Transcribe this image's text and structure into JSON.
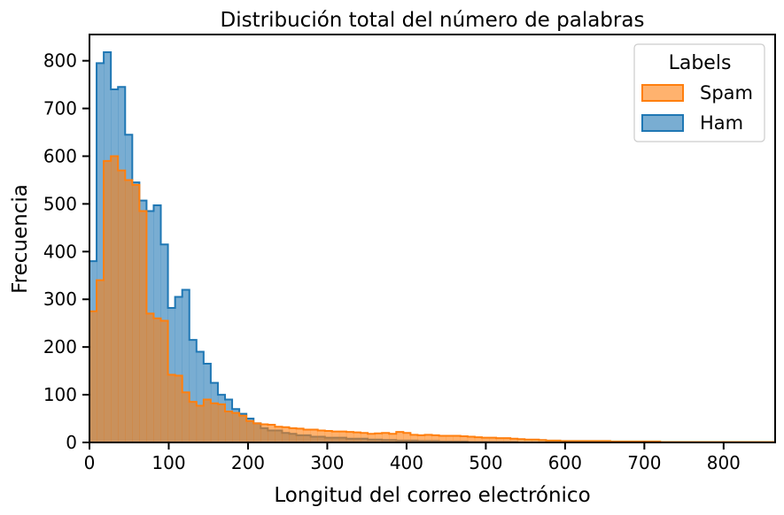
{
  "chart_data": {
    "type": "histogram",
    "title": "Distribución total del número de palabras",
    "xlabel": "Longitud del correo electrónico",
    "ylabel": "Frecuencia",
    "xlim": [
      0,
      865
    ],
    "ylim": [
      0,
      855
    ],
    "xticks": [
      0,
      100,
      200,
      300,
      400,
      500,
      600,
      700,
      800
    ],
    "yticks": [
      0,
      100,
      200,
      300,
      400,
      500,
      600,
      700,
      800
    ],
    "bin_width": 9,
    "grid": false,
    "legend": {
      "title": "Labels",
      "placement": "top-right"
    },
    "series": [
      {
        "name": "Ham",
        "color": "#1f77b4",
        "values": [
          380,
          795,
          818,
          740,
          745,
          645,
          545,
          507,
          485,
          497,
          415,
          282,
          305,
          320,
          215,
          190,
          165,
          125,
          100,
          90,
          70,
          60,
          50,
          40,
          30,
          25,
          25,
          20,
          18,
          15,
          15,
          12,
          12,
          10,
          10,
          10,
          8,
          8,
          8,
          6,
          6,
          5,
          5,
          4,
          4,
          4,
          3,
          3,
          3,
          2,
          2,
          2,
          2,
          1,
          1,
          1,
          1,
          1,
          1,
          1,
          0,
          0,
          0,
          0,
          0,
          0,
          0,
          0,
          0,
          0,
          0,
          0,
          0,
          0,
          0,
          0,
          0,
          0,
          0,
          0,
          0,
          0,
          0,
          0,
          0,
          0,
          0,
          0,
          0,
          0,
          0,
          0,
          0,
          0,
          0,
          0,
          0
        ]
      },
      {
        "name": "Spam",
        "color": "#ff7f0e",
        "values": [
          275,
          340,
          590,
          600,
          570,
          550,
          540,
          485,
          270,
          260,
          255,
          142,
          140,
          105,
          85,
          77,
          90,
          82,
          80,
          65,
          62,
          56,
          45,
          40,
          38,
          37,
          33,
          32,
          30,
          29,
          27,
          27,
          25,
          24,
          23,
          23,
          22,
          21,
          20,
          18,
          19,
          20,
          18,
          22,
          20,
          16,
          15,
          16,
          15,
          14,
          14,
          14,
          13,
          12,
          11,
          10,
          10,
          9,
          9,
          8,
          7,
          6,
          6,
          5,
          4,
          4,
          3,
          3,
          3,
          3,
          3,
          3,
          3,
          2,
          2,
          2,
          2,
          2,
          2,
          2,
          1,
          1,
          1,
          1,
          1,
          1,
          1,
          1,
          1,
          1,
          1,
          1,
          1,
          1,
          1,
          1,
          1
        ]
      }
    ]
  }
}
